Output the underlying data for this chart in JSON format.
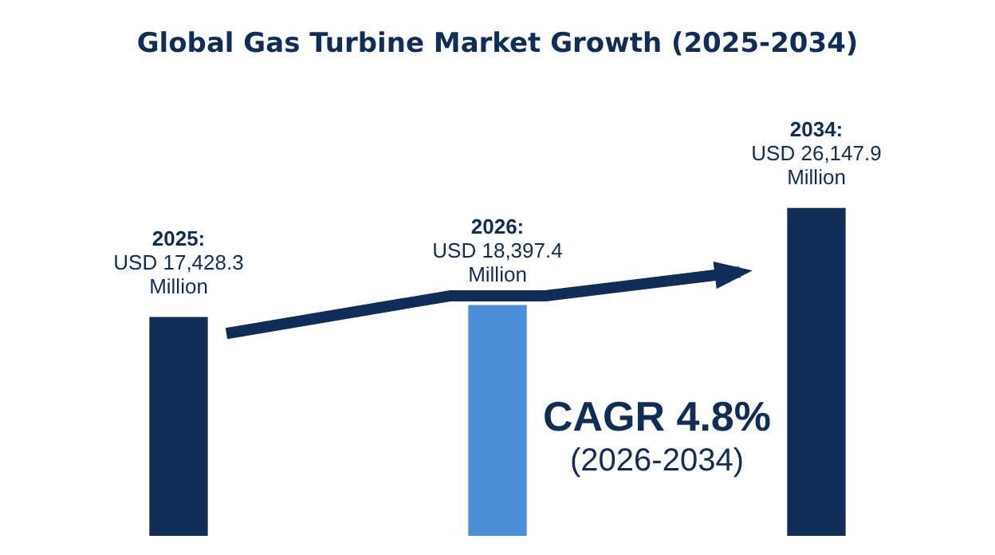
{
  "chart_data": {
    "type": "bar",
    "title": "Global Gas Turbine Market Growth (2025-2034)",
    "categories": [
      null,
      null,
      null
    ],
    "values": [
      17428.3,
      18397.4,
      26147.9
    ],
    "colors": [
      "#0f2d57",
      "#4a90d9",
      "#0f2d57"
    ],
    "value_labels": [
      "2025:\nUSD 17,428.3\nMillion",
      "2026:\nUSD 18,397.4\nMillion",
      "2034:\nUSD 26,147.9\nMillion"
    ],
    "annotations": [
      "CAGR 4.8%",
      "(2026-2034)"
    ]
  }
}
